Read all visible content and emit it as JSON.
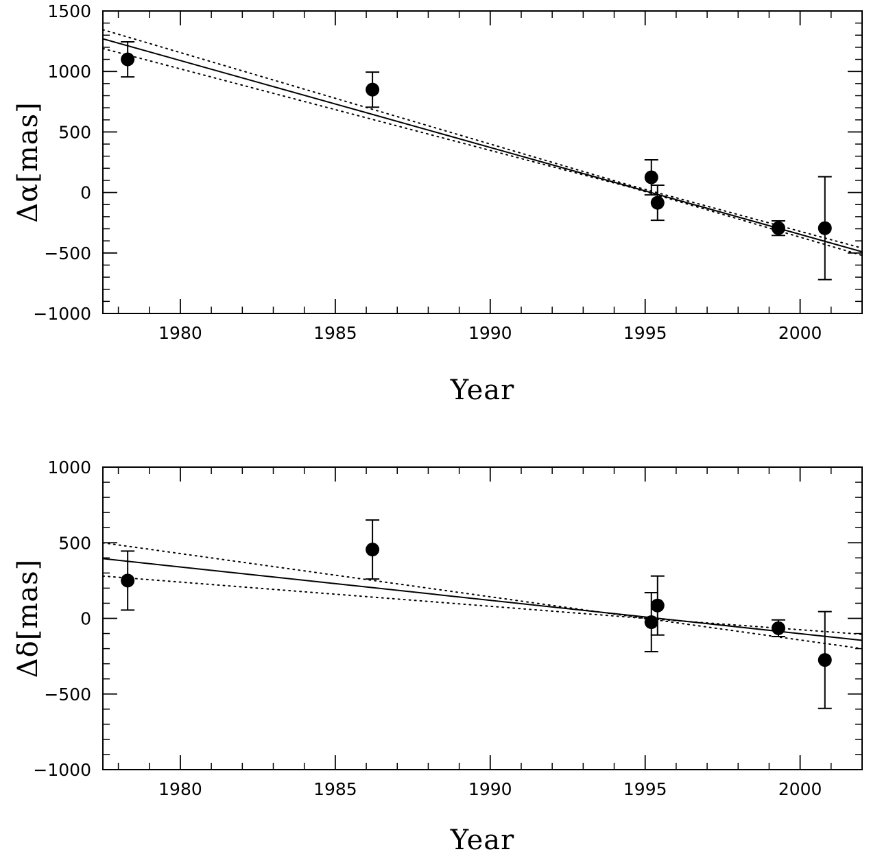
{
  "chart_data": [
    {
      "type": "scatter",
      "xlabel": "Year",
      "ylabel": "Δα[mas]",
      "xlim": [
        1977.5,
        2002
      ],
      "ylim": [
        -1000,
        1500
      ],
      "x_ticks": [
        1980,
        1985,
        1990,
        1995,
        2000
      ],
      "y_ticks": [
        -1000,
        -500,
        0,
        500,
        1000,
        1500
      ],
      "x_minor_step": 1,
      "y_minor_step": 100,
      "grid": false,
      "series": [
        {
          "points": [
            {
              "x": 1978.3,
              "y": 1100,
              "err": 145
            },
            {
              "x": 1986.2,
              "y": 850,
              "err": 145
            },
            {
              "x": 1995.2,
              "y": 125,
              "err": 145
            },
            {
              "x": 1995.4,
              "y": -85,
              "err": 145
            },
            {
              "x": 1999.3,
              "y": -295,
              "err": 60
            },
            {
              "x": 2000.8,
              "y": -295,
              "err": 425
            }
          ]
        }
      ],
      "fit": {
        "solid": [
          {
            "x": 1977.5,
            "y": 1270
          },
          {
            "x": 2002,
            "y": -490
          }
        ],
        "dotted": [
          [
            {
              "x": 1977.5,
              "y": 1345
            },
            {
              "x": 1994.5,
              "y": 60
            },
            {
              "x": 2002,
              "y": -460
            }
          ],
          [
            {
              "x": 1977.5,
              "y": 1190
            },
            {
              "x": 1994.5,
              "y": 45
            },
            {
              "x": 2002,
              "y": -520
            }
          ]
        ]
      }
    },
    {
      "type": "scatter",
      "xlabel": "Year",
      "ylabel": "Δδ[mas]",
      "xlim": [
        1977.5,
        2002
      ],
      "ylim": [
        -1000,
        1000
      ],
      "x_ticks": [
        1980,
        1985,
        1990,
        1995,
        2000
      ],
      "y_ticks": [
        -1000,
        -500,
        0,
        500,
        1000
      ],
      "x_minor_step": 1,
      "y_minor_step": 100,
      "grid": false,
      "series": [
        {
          "points": [
            {
              "x": 1978.3,
              "y": 250,
              "err": 195
            },
            {
              "x": 1986.2,
              "y": 455,
              "err": 195
            },
            {
              "x": 1995.2,
              "y": -25,
              "err": 195
            },
            {
              "x": 1995.4,
              "y": 85,
              "err": 195
            },
            {
              "x": 1999.3,
              "y": -65,
              "err": 55
            },
            {
              "x": 2000.8,
              "y": -275,
              "err": 320
            }
          ]
        }
      ],
      "fit": {
        "solid": [
          {
            "x": 1977.5,
            "y": 395
          },
          {
            "x": 2002,
            "y": -145
          }
        ],
        "dotted": [
          [
            {
              "x": 1977.5,
              "y": 500
            },
            {
              "x": 1995,
              "y": 0
            },
            {
              "x": 2002,
              "y": -105
            }
          ],
          [
            {
              "x": 1977.5,
              "y": 280
            },
            {
              "x": 1995,
              "y": 0
            },
            {
              "x": 2002,
              "y": -200
            }
          ]
        ]
      }
    }
  ]
}
